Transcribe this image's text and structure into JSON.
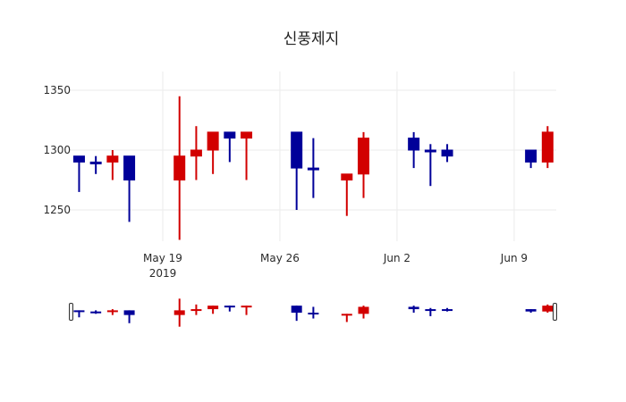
{
  "chart_data": {
    "type": "candlestick",
    "title": "신풍제지",
    "xlabel": "",
    "ylabel": "",
    "ylim": [
      1220,
      1350
    ],
    "y_ticks": [
      1250,
      1300,
      1350
    ],
    "x_ticks": [
      {
        "date": "2019-05-19",
        "label": "May 19",
        "sublabel": "2019"
      },
      {
        "date": "2019-05-26",
        "label": "May 26",
        "sublabel": ""
      },
      {
        "date": "2019-06-02",
        "label": "Jun 2",
        "sublabel": ""
      },
      {
        "date": "2019-06-09",
        "label": "Jun 9",
        "sublabel": ""
      }
    ],
    "grid": true,
    "increasing_color": "#d20000",
    "decreasing_color": "#000099",
    "rangeslider": true,
    "x": [
      "2019-05-14",
      "2019-05-15",
      "2019-05-16",
      "2019-05-17",
      "2019-05-20",
      "2019-05-21",
      "2019-05-22",
      "2019-05-23",
      "2019-05-24",
      "2019-05-27",
      "2019-05-28",
      "2019-05-30",
      "2019-05-31",
      "2019-06-03",
      "2019-06-04",
      "2019-06-05",
      "2019-06-10",
      "2019-06-11"
    ],
    "open": [
      1295,
      1290,
      1290,
      1295,
      1275,
      1295,
      1300,
      1315,
      1310,
      1315,
      1285,
      1275,
      1280,
      1310,
      1300,
      1300,
      1300,
      1290
    ],
    "high": [
      1295,
      1295,
      1300,
      1295,
      1345,
      1320,
      1315,
      1315,
      1315,
      1315,
      1310,
      1280,
      1315,
      1315,
      1305,
      1305,
      1300,
      1320
    ],
    "low": [
      1265,
      1280,
      1275,
      1240,
      1225,
      1275,
      1280,
      1290,
      1275,
      1250,
      1260,
      1245,
      1260,
      1285,
      1270,
      1290,
      1285,
      1285
    ],
    "close": [
      1290,
      1290,
      1295,
      1275,
      1295,
      1300,
      1315,
      1310,
      1315,
      1285,
      1285,
      1280,
      1310,
      1300,
      1300,
      1295,
      1290,
      1315
    ]
  }
}
